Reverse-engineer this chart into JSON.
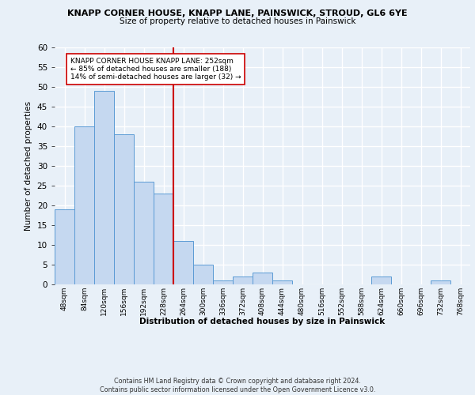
{
  "title1": "KNAPP CORNER HOUSE, KNAPP LANE, PAINSWICK, STROUD, GL6 6YE",
  "title2": "Size of property relative to detached houses in Painswick",
  "xlabel": "Distribution of detached houses by size in Painswick",
  "ylabel": "Number of detached properties",
  "bin_labels": [
    "48sqm",
    "84sqm",
    "120sqm",
    "156sqm",
    "192sqm",
    "228sqm",
    "264sqm",
    "300sqm",
    "336sqm",
    "372sqm",
    "408sqm",
    "444sqm",
    "480sqm",
    "516sqm",
    "552sqm",
    "588sqm",
    "624sqm",
    "660sqm",
    "696sqm",
    "732sqm",
    "768sqm"
  ],
  "bar_values": [
    19,
    40,
    49,
    38,
    26,
    23,
    11,
    5,
    1,
    2,
    3,
    1,
    0,
    0,
    0,
    0,
    2,
    0,
    0,
    1,
    0
  ],
  "bar_color": "#c5d8f0",
  "bar_edge_color": "#5b9bd5",
  "ylim": [
    0,
    60
  ],
  "yticks": [
    0,
    5,
    10,
    15,
    20,
    25,
    30,
    35,
    40,
    45,
    50,
    55,
    60
  ],
  "vline_bin_index": 5.5,
  "vline_color": "#cc0000",
  "annotation_text": "KNAPP CORNER HOUSE KNAPP LANE: 252sqm\n← 85% of detached houses are smaller (188)\n14% of semi-detached houses are larger (32) →",
  "annotation_box_facecolor": "#ffffff",
  "annotation_box_edgecolor": "#cc0000",
  "footer_text": "Contains HM Land Registry data © Crown copyright and database right 2024.\nContains public sector information licensed under the Open Government Licence v3.0.",
  "bg_color": "#e8f0f8",
  "grid_color": "#ffffff"
}
